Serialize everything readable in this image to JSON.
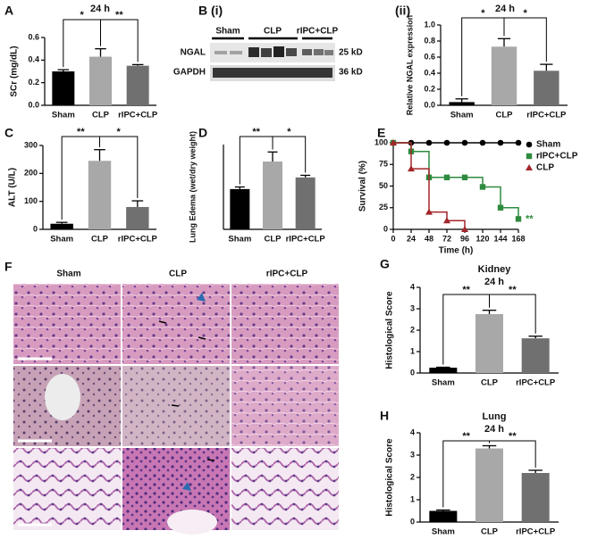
{
  "blot": {
    "label": "B (i)",
    "groups": [
      "Sham",
      "CLP",
      "rIPC+CLP"
    ],
    "rows": [
      {
        "name": "NGAL",
        "size": "25 kD"
      },
      {
        "name": "GAPDH",
        "size": "36 kD"
      }
    ]
  },
  "histology": {
    "label": "F",
    "columns": [
      "Sham",
      "CLP",
      "rIPC+CLP"
    ]
  },
  "chart_data": [
    {
      "type": "bar",
      "label": "A",
      "title": "24 h",
      "ylabel": "SCr (mg/dL)",
      "categories": [
        "Sham",
        "CLP",
        "rIPC+CLP"
      ],
      "values": [
        0.3,
        0.43,
        0.35
      ],
      "errors": [
        0.015,
        0.07,
        0.01
      ],
      "colors": [
        "#000000",
        "#a8a8a8",
        "#707070"
      ],
      "ylim": [
        0,
        0.6
      ],
      "yticks": [
        {
          "value": 0,
          "label": "0.0"
        },
        {
          "value": 0.2,
          "label": "0.2"
        },
        {
          "value": 0.4,
          "label": "0.4"
        },
        {
          "value": 0.6,
          "label": "0.6"
        }
      ],
      "significance": [
        "*",
        "**"
      ]
    },
    {
      "type": "bar",
      "label": "(ii)",
      "title": "24 h",
      "ylabel": "Relative NGAL expression",
      "categories": [
        "Sham",
        "CLP",
        "rIPC+CLP"
      ],
      "values": [
        0.04,
        0.73,
        0.43
      ],
      "errors": [
        0.04,
        0.1,
        0.08
      ],
      "colors": [
        "#000000",
        "#a8a8a8",
        "#707070"
      ],
      "ylim": [
        0,
        1
      ],
      "yticks": [
        {
          "value": 0,
          "label": "0.0"
        },
        {
          "value": 0.2,
          "label": "0.2"
        },
        {
          "value": 0.4,
          "label": "0.4"
        },
        {
          "value": 0.6,
          "label": "0.6"
        },
        {
          "value": 0.8,
          "label": "0.8"
        },
        {
          "value": 1,
          "label": "1.0"
        }
      ],
      "significance": [
        "*",
        "*"
      ]
    },
    {
      "type": "bar",
      "label": "C",
      "ylabel": "ALT (U/L)",
      "categories": [
        "Sham",
        "CLP",
        "rIPC+CLP"
      ],
      "values": [
        20,
        245,
        80
      ],
      "errors": [
        5,
        40,
        22
      ],
      "colors": [
        "#000000",
        "#a8a8a8",
        "#707070"
      ],
      "ylim": [
        0,
        300
      ],
      "yticks": [
        0,
        100,
        200,
        300
      ],
      "significance": [
        "**",
        "*"
      ]
    },
    {
      "type": "bar",
      "label": "D",
      "ylabel": "Lung Edema (wet/dry weight)",
      "categories": [
        "Sham",
        "CLP",
        "rIPC+CLP"
      ],
      "values": [
        3.8,
        6.4,
        4.9
      ],
      "errors": [
        0.2,
        0.9,
        0.2
      ],
      "colors": [
        "#000000",
        "#a8a8a8",
        "#707070"
      ],
      "ylim": [
        0,
        8
      ],
      "significance": [
        "**",
        "*"
      ]
    },
    {
      "type": "line",
      "label": "E",
      "ylabel": "Survival (%)",
      "xlabel": "Time (h)",
      "step": true,
      "x": [
        0,
        24,
        48,
        72,
        96,
        120,
        144,
        168
      ],
      "series": [
        {
          "name": "Sham",
          "color": "#000000",
          "marker": "circle",
          "values": [
            100,
            100,
            100,
            100,
            100,
            100,
            100,
            100
          ]
        },
        {
          "name": "rIPC+CLP",
          "color": "#2e8b3e",
          "marker": "square",
          "values": [
            100,
            90,
            60,
            60,
            60,
            49,
            25,
            12
          ]
        },
        {
          "name": "CLP",
          "color": "#a3262a",
          "marker": "triangle",
          "values": [
            100,
            70,
            20,
            10,
            0,
            null,
            null,
            null
          ]
        }
      ],
      "xlim": [
        0,
        168
      ],
      "xticks": [
        0,
        24,
        48,
        72,
        96,
        120,
        144,
        168
      ],
      "ylim": [
        0,
        100
      ],
      "yticks": [
        0,
        25,
        50,
        75,
        100
      ],
      "annotation": "**"
    },
    {
      "type": "bar",
      "label": "G",
      "title": "Kidney",
      "subtitle": "24 h",
      "ylabel": "Histological Score",
      "categories": [
        "Sham",
        "CLP",
        "rIPC+CLP"
      ],
      "values": [
        0.25,
        2.75,
        1.62
      ],
      "errors": [
        0.02,
        0.18,
        0.1
      ],
      "colors": [
        "#000000",
        "#a8a8a8",
        "#707070"
      ],
      "ylim": [
        0,
        4
      ],
      "yticks": [
        0,
        1,
        2,
        3,
        4
      ],
      "significance": [
        "**",
        "**"
      ]
    },
    {
      "type": "bar",
      "label": "H",
      "title": "Lung",
      "subtitle": "24 h",
      "ylabel": "Histological Score",
      "categories": [
        "Sham",
        "CLP",
        "rIPC+CLP"
      ],
      "values": [
        0.5,
        3.3,
        2.2
      ],
      "errors": [
        0.04,
        0.12,
        0.12
      ],
      "colors": [
        "#000000",
        "#a8a8a8",
        "#707070"
      ],
      "ylim": [
        0,
        4
      ],
      "yticks": [
        0,
        1,
        2,
        3,
        4
      ],
      "significance": [
        "**",
        "**"
      ]
    }
  ]
}
